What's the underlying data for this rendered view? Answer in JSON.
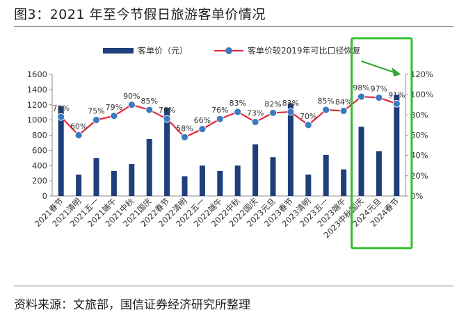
{
  "figure": {
    "title": "图3：2021 年至今节假日旅游客单价情况",
    "source": "资料来源：文旅部，国信证券经济研究所整理"
  },
  "colors": {
    "bar": "#1f3f7a",
    "line": "#e3263a",
    "marker": "#3a7bbf",
    "highlight": "#2fbf2f",
    "arrow": "#2fa62f"
  },
  "chart_data": {
    "type": "bar",
    "categories": [
      "2021春节",
      "2021清明",
      "2021五一",
      "2021端午",
      "2021中秋",
      "2021国庆",
      "2022春节",
      "2022清明",
      "2022五一",
      "2022端午",
      "2022中秋",
      "2022国庆",
      "2023元旦",
      "2023春节",
      "2023清明",
      "2023五一",
      "2023端午",
      "2023中秋国庆",
      "2024元旦",
      "2024春节"
    ],
    "series": [
      {
        "name": "客单价（元）",
        "type": "bar",
        "axis": "left",
        "values": [
          1180,
          280,
          500,
          330,
          420,
          750,
          1160,
          260,
          400,
          330,
          400,
          680,
          510,
          1220,
          280,
          540,
          350,
          910,
          590,
          1330
        ]
      },
      {
        "name": "客单价较2019年可比口径恢复",
        "type": "line",
        "axis": "right",
        "values": [
          78,
          60,
          75,
          79,
          90,
          85,
          76,
          58,
          66,
          76,
          83,
          73,
          82,
          83,
          70,
          85,
          84,
          98,
          97,
          91
        ],
        "labels": [
          "78%",
          "60%",
          "75%",
          "79%",
          "90%",
          "85%",
          "76%",
          "58%",
          "66%",
          "76%",
          "83%",
          "73%",
          "82%",
          "83%",
          "70%",
          "85%",
          "84%",
          "98%",
          "97%",
          "91%"
        ]
      }
    ],
    "y_left": {
      "min": 0,
      "max": 1600,
      "ticks": [
        "0",
        "200",
        "400",
        "600",
        "800",
        "1000",
        "1200",
        "1400",
        "1600"
      ]
    },
    "y_right": {
      "min": 0,
      "max": 120,
      "ticks": [
        "0%",
        "20%",
        "40%",
        "60%",
        "80%",
        "100%",
        "120%"
      ]
    },
    "legend_position": "top",
    "grid": false
  }
}
